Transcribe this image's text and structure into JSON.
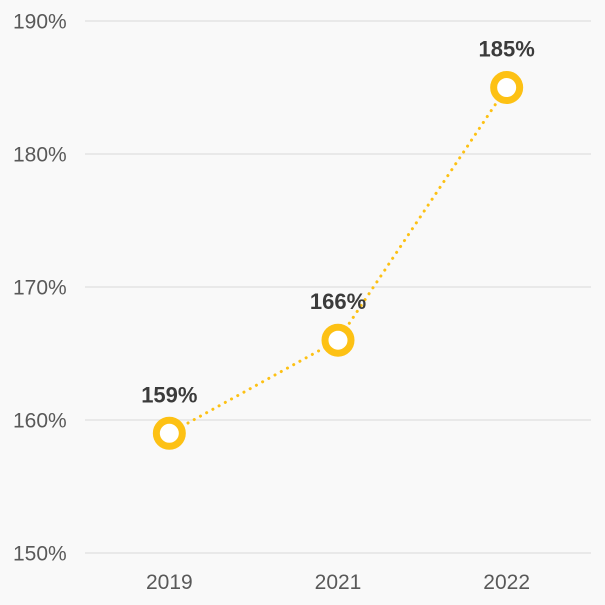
{
  "chart_data": {
    "type": "line",
    "title": "",
    "xlabel": "",
    "ylabel": "",
    "categories": [
      "2019",
      "2021",
      "2022"
    ],
    "values": [
      159,
      166,
      185
    ],
    "value_labels": [
      "159%",
      "166%",
      "185%"
    ],
    "ylim": [
      150,
      190
    ],
    "yticks": [
      150,
      160,
      170,
      180,
      190
    ],
    "ytick_labels": [
      "150%",
      "160%",
      "170%",
      "180%",
      "190%"
    ],
    "grid": true,
    "legend": false,
    "line_style": "dotted",
    "marker": "open-circle",
    "colors": {
      "line": "#FDC114",
      "marker_stroke": "#FDC114",
      "marker_fill": "#FFFFFF",
      "data_label": "#3B3B3B",
      "axis_label": "#595959",
      "gridline": "#D9D9D9",
      "background": "#F9F9F9"
    }
  }
}
